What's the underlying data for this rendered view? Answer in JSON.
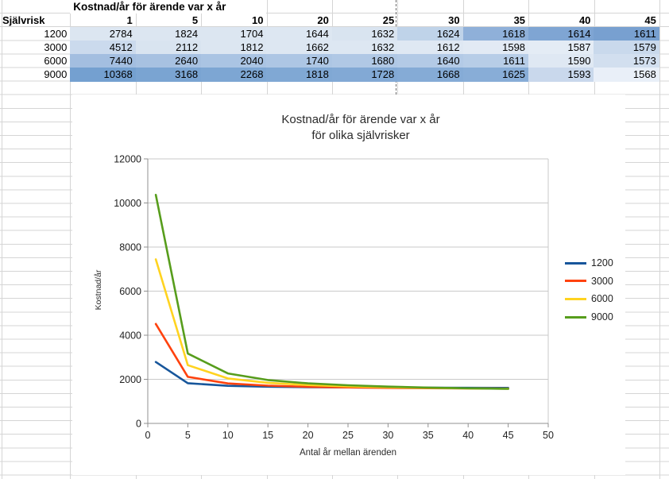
{
  "table": {
    "title": "Kostnad/år för ärende var x år",
    "row_header": "Självrisk",
    "col_headers": [
      "1",
      "5",
      "10",
      "20",
      "25",
      "30",
      "35",
      "40",
      "45"
    ],
    "rows": [
      {
        "label": "1200",
        "values": [
          "2784",
          "1824",
          "1704",
          "1644",
          "1632",
          "1624",
          "1618",
          "1614",
          "1611"
        ],
        "fills": [
          "#dce6f1",
          "#dce6f1",
          "#dce6f1",
          "#dde7f2",
          "#d9e4f0",
          "#bfd3e9",
          "#8fb0d9",
          "#7fa5d3",
          "#78a0d0"
        ]
      },
      {
        "label": "3000",
        "values": [
          "4512",
          "2112",
          "1812",
          "1662",
          "1632",
          "1612",
          "1598",
          "1587",
          "1579"
        ],
        "fills": [
          "#cbdaed",
          "#d9e4f0",
          "#dce6f1",
          "#dde7f2",
          "#dde7f2",
          "#dfe8f3",
          "#e2eaf4",
          "#e4ecf5",
          "#c9d9ec"
        ]
      },
      {
        "label": "6000",
        "values": [
          "7440",
          "2640",
          "2040",
          "1740",
          "1680",
          "1640",
          "1611",
          "1590",
          "1573"
        ],
        "fills": [
          "#a3bee0",
          "#a7c1e1",
          "#aac4e3",
          "#adc6e4",
          "#b0c8e5",
          "#b3cae6",
          "#b7cde7",
          "#dfe8f3",
          "#d2dfef"
        ]
      },
      {
        "label": "9000",
        "values": [
          "10368",
          "3168",
          "2268",
          "1818",
          "1728",
          "1668",
          "1625",
          "1593",
          "1568"
        ],
        "fills": [
          "#74a0d0",
          "#7aa4d2",
          "#7da6d3",
          "#80a8d4",
          "#82a9d5",
          "#85abd6",
          "#88add7",
          "#c9d8ec",
          "#e9eff8"
        ]
      }
    ]
  },
  "chart_data": {
    "type": "line",
    "title_line1": "Kostnad/år för ärende var x år",
    "title_line2": "för olika självrisker",
    "xlabel": "Antal år mellan ärenden",
    "ylabel": "Kostnad/år",
    "x": [
      1,
      5,
      10,
      15,
      20,
      25,
      30,
      35,
      40,
      45
    ],
    "series": [
      {
        "name": "1200",
        "color": "#17569b",
        "values": [
          2784,
          1824,
          1704,
          1664,
          1644,
          1632,
          1624,
          1618,
          1614,
          1611
        ]
      },
      {
        "name": "3000",
        "color": "#ff420e",
        "values": [
          4512,
          2112,
          1812,
          1712,
          1662,
          1632,
          1612,
          1598,
          1587,
          1579
        ]
      },
      {
        "name": "6000",
        "color": "#ffd320",
        "values": [
          7440,
          2640,
          2040,
          1840,
          1740,
          1680,
          1640,
          1611,
          1590,
          1573
        ]
      },
      {
        "name": "9000",
        "color": "#579d1c",
        "values": [
          10368,
          3168,
          2268,
          1968,
          1818,
          1728,
          1668,
          1625,
          1593,
          1568
        ]
      }
    ],
    "x_ticks": [
      0,
      5,
      10,
      15,
      20,
      25,
      30,
      35,
      40,
      45,
      50
    ],
    "y_ticks": [
      0,
      2000,
      4000,
      6000,
      8000,
      10000,
      12000
    ],
    "xlim": [
      0,
      50
    ],
    "ylim": [
      0,
      12000
    ],
    "legend_position": "right",
    "grid": "horizontal",
    "axis_color": "#919191",
    "gridline_color": "#c9c9c9"
  }
}
